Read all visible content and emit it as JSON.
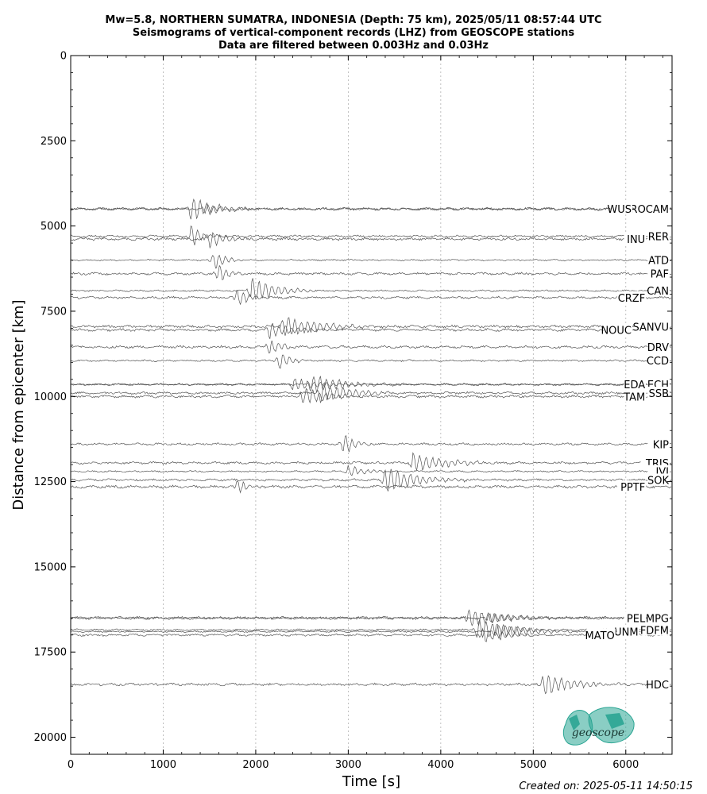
{
  "title": {
    "line1": "Mw=5.8, NORTHERN SUMATRA, INDONESIA (Depth: 75 km), 2025/05/11 08:57:44 UTC",
    "line2": "Seismograms of vertical-component records (LHZ) from GEOSCOPE stations",
    "line3": "Data are filtered between 0.003Hz and 0.03Hz"
  },
  "created": "Created on: 2025-05-11 14:50:15",
  "logo": {
    "text": "geoscope",
    "color": "#2aa593"
  },
  "colors": {
    "trace": "#555555",
    "grid": "#b0b0b0",
    "axis": "#000000"
  },
  "chart_data": {
    "type": "line",
    "xlabel": "Time [s]",
    "ylabel": "Distance from epicenter [km]",
    "xlim": [
      0,
      6500
    ],
    "ylim": [
      20500,
      0
    ],
    "y_inverted": true,
    "xticks": [
      0,
      1000,
      2000,
      3000,
      4000,
      5000,
      6000
    ],
    "yticks": [
      0,
      2500,
      5000,
      7500,
      10000,
      12500,
      15000,
      17500,
      20000
    ],
    "grid": "vertical dotted",
    "stations": [
      {
        "name": "ROCAM",
        "distance": 4500,
        "arrival": 1300,
        "duration": 700,
        "amp": 1.0
      },
      {
        "name": "WUS",
        "distance": 4500,
        "arrival": 1450,
        "duration": 400,
        "amp": 0.4
      },
      {
        "name": "RER",
        "distance": 5300,
        "arrival": 1300,
        "duration": 300,
        "amp": 1.0
      },
      {
        "name": "INU",
        "distance": 5380,
        "arrival": 1500,
        "duration": 500,
        "amp": 0.7
      },
      {
        "name": "ATD",
        "distance": 6000,
        "arrival": 1550,
        "duration": 300,
        "amp": 0.9
      },
      {
        "name": "PAF",
        "distance": 6400,
        "arrival": 1600,
        "duration": 300,
        "amp": 0.8
      },
      {
        "name": "CAN",
        "distance": 6900,
        "arrival": 1950,
        "duration": 700,
        "amp": 1.1
      },
      {
        "name": "CRZF",
        "distance": 7100,
        "arrival": 1800,
        "duration": 300,
        "amp": 0.9
      },
      {
        "name": "SANVU",
        "distance": 7950,
        "arrival": 2300,
        "duration": 1000,
        "amp": 1.0
      },
      {
        "name": "NOUC",
        "distance": 8050,
        "arrival": 2150,
        "duration": 700,
        "amp": 0.7
      },
      {
        "name": "DRV",
        "distance": 8550,
        "arrival": 2150,
        "duration": 300,
        "amp": 0.8
      },
      {
        "name": "CCD",
        "distance": 8950,
        "arrival": 2250,
        "duration": 300,
        "amp": 0.8
      },
      {
        "name": "ECH",
        "distance": 9650,
        "arrival": 2600,
        "duration": 1000,
        "amp": 0.8
      },
      {
        "name": "EDA",
        "distance": 9650,
        "arrival": 2400,
        "duration": 800,
        "amp": 0.6
      },
      {
        "name": "SSB",
        "distance": 9900,
        "arrival": 2700,
        "duration": 900,
        "amp": 0.9
      },
      {
        "name": "TAM",
        "distance": 10000,
        "arrival": 2500,
        "duration": 800,
        "amp": 0.7
      },
      {
        "name": "KIP",
        "distance": 11400,
        "arrival": 2950,
        "duration": 300,
        "amp": 1.0
      },
      {
        "name": "TRIS",
        "distance": 11950,
        "arrival": 3700,
        "duration": 900,
        "amp": 0.8
      },
      {
        "name": "IVI",
        "distance": 12200,
        "arrival": 3000,
        "duration": 500,
        "amp": 0.5
      },
      {
        "name": "SOK",
        "distance": 12450,
        "arrival": 3400,
        "duration": 900,
        "amp": 1.1
      },
      {
        "name": "PPTF",
        "distance": 12650,
        "arrival": 1800,
        "duration": 300,
        "amp": 0.7
      },
      {
        "name": "MPG",
        "distance": 16500,
        "arrival": 4300,
        "duration": 1000,
        "amp": 0.8
      },
      {
        "name": "PEL",
        "distance": 16500,
        "arrival": 4500,
        "duration": 800,
        "amp": 0.5
      },
      {
        "name": "FDFM",
        "distance": 16850,
        "arrival": 4400,
        "duration": 900,
        "amp": 0.9
      },
      {
        "name": "UNM",
        "distance": 16900,
        "arrival": 4600,
        "duration": 900,
        "amp": 0.8
      },
      {
        "name": "MATO",
        "distance": 17000,
        "arrival": 4450,
        "duration": 600,
        "amp": 0.6
      },
      {
        "name": "HDC",
        "distance": 18450,
        "arrival": 5100,
        "duration": 900,
        "amp": 0.9
      }
    ]
  }
}
